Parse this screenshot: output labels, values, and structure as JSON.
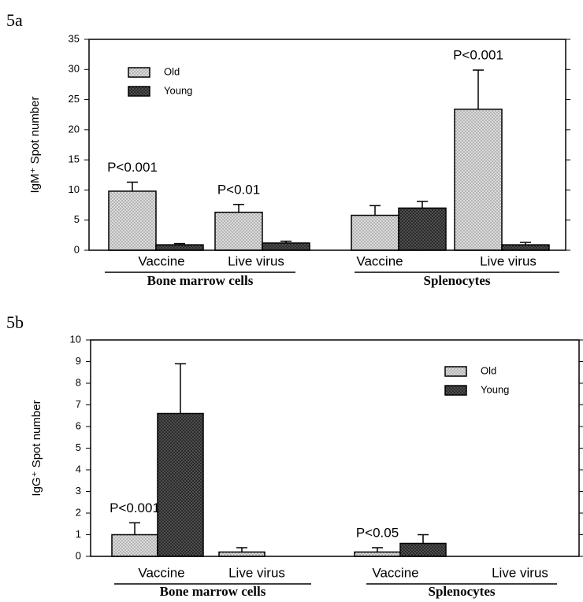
{
  "chart_data": [
    {
      "type": "bar",
      "panel_label": "5a",
      "ylabel": "IgM⁺ Spot number",
      "categories": [
        "Vaccine",
        "Live virus",
        "Vaccine",
        "Live virus"
      ],
      "groups": [
        "Bone marrow cells",
        "Splenocytes"
      ],
      "annotations": [
        "P<0.001",
        "P<0.01",
        null,
        "P<0.001"
      ],
      "series": [
        {
          "name": "Old",
          "color": "#dcdcdc",
          "values": [
            9.8,
            6.3,
            5.8,
            23.4
          ],
          "errors": [
            1.5,
            1.3,
            1.6,
            6.5
          ]
        },
        {
          "name": "Young",
          "color": "#2a2a2a",
          "values": [
            0.9,
            1.2,
            7.0,
            0.9
          ],
          "errors": [
            0.2,
            0.3,
            1.1,
            0.4
          ]
        }
      ],
      "ylim": [
        0,
        35
      ],
      "yticks": [
        0,
        5,
        10,
        15,
        20,
        25,
        30,
        35
      ],
      "legend": "upper left"
    },
    {
      "type": "bar",
      "panel_label": "5b",
      "ylabel": "IgG⁺ Spot number",
      "categories": [
        "Vaccine",
        "Live virus",
        "Vaccine",
        "Live virus"
      ],
      "groups": [
        "Bone marrow cells",
        "Splenocytes"
      ],
      "annotations": [
        "P<0.001",
        null,
        "P<0.05",
        null
      ],
      "series": [
        {
          "name": "Old",
          "color": "#dcdcdc",
          "values": [
            1.0,
            0.2,
            0.2,
            0
          ],
          "errors": [
            0.55,
            0.2,
            0.2,
            null
          ]
        },
        {
          "name": "Young",
          "color": "#2a2a2a",
          "values": [
            6.6,
            0,
            0.6,
            0
          ],
          "errors": [
            2.3,
            null,
            0.4,
            null
          ]
        }
      ],
      "ylim": [
        0,
        10
      ],
      "yticks": [
        0,
        1,
        2,
        3,
        4,
        5,
        6,
        7,
        8,
        9,
        10
      ],
      "legend": "upper right"
    }
  ]
}
